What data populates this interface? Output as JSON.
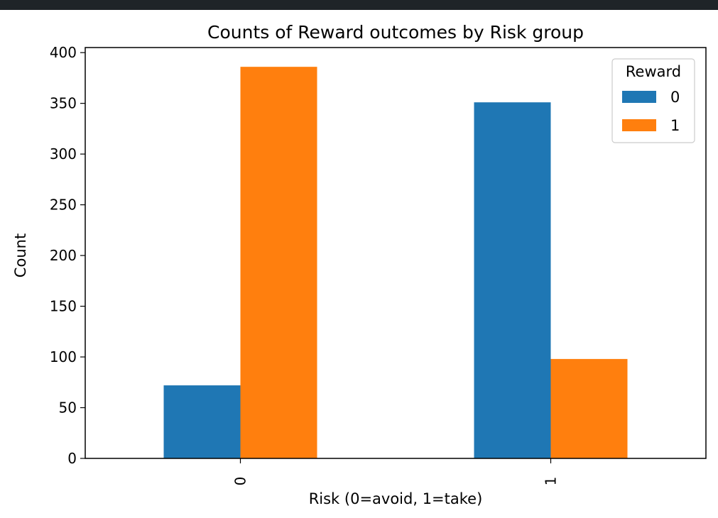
{
  "chart_data": {
    "type": "bar",
    "title": "Counts of Reward outcomes by Risk group",
    "xlabel": "Risk (0=avoid, 1=take)",
    "ylabel": "Count",
    "categories": [
      "0",
      "1"
    ],
    "series": [
      {
        "name": "0",
        "color": "#1f77b4",
        "values": [
          72,
          351
        ]
      },
      {
        "name": "1",
        "color": "#ff7f0e",
        "values": [
          386,
          98
        ]
      }
    ],
    "ylim": [
      0,
      405
    ],
    "yticks": [
      0,
      50,
      100,
      150,
      200,
      250,
      300,
      350,
      400
    ],
    "ytick_labels": [
      "0",
      "50",
      "100",
      "150",
      "200",
      "250",
      "300",
      "350",
      "400"
    ],
    "legend": {
      "title": "Reward",
      "placement": "top-right"
    },
    "grid": false
  }
}
